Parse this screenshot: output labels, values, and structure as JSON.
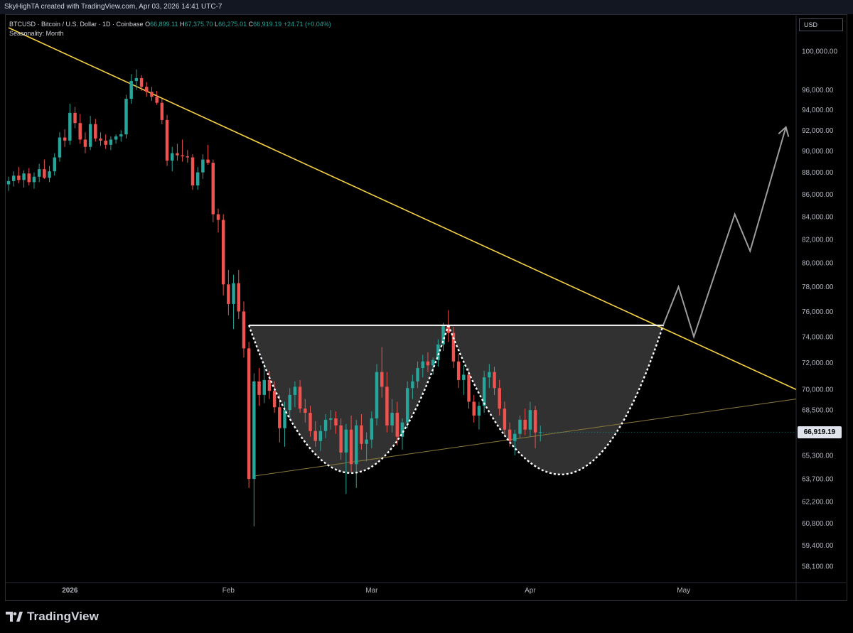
{
  "header": {
    "credit": "SkyHighTA created with TradingView.com, Apr 03, 2026 14:41 UTC-7"
  },
  "legend": {
    "symbol_line": "BTCUSD · Bitcoin / U.S. Dollar · 1D · Coinbase",
    "open_label": "O",
    "open": "66,899.11",
    "high_label": "H",
    "high": "67,375.70",
    "low_label": "L",
    "low": "66,275.01",
    "close_label": "C",
    "close": "66,919.19",
    "change": "+24.71 (+0.04%)",
    "indicator": "Seasonality: Month"
  },
  "currency": "USD",
  "last_price_label": "66,919.19",
  "branding": {
    "logo_text": "TradingView"
  },
  "colors": {
    "up": "#26a69a",
    "down": "#ef5350",
    "trendline": "#f5d142",
    "support": "#8a7a3a",
    "neckline": "#ffffff",
    "projection": "#9e9e9e",
    "fill": "#3a3a3a"
  },
  "chart_data": {
    "type": "candlestick",
    "y_axis": {
      "scale": "log",
      "ticks": [
        100000,
        96000,
        94000,
        92000,
        90000,
        88000,
        86000,
        84000,
        82000,
        80000,
        78000,
        76000,
        74000,
        72000,
        70000,
        68500,
        65300,
        63700,
        62200,
        60800,
        59400,
        58100
      ],
      "tick_labels": [
        "100,000.00",
        "96,000.00",
        "94,000.00",
        "92,000.00",
        "90,000.00",
        "88,000.00",
        "86,000.00",
        "84,000.00",
        "82,000.00",
        "80,000.00",
        "78,000.00",
        "76,000.00",
        "74,000.00",
        "72,000.00",
        "70,000.00",
        "68,500.00",
        "65,300.00",
        "63,700.00",
        "62,200.00",
        "60,800.00",
        "59,400.00",
        "58,100.00"
      ]
    },
    "x_axis": {
      "start": "2025-12-20",
      "end": "2026-05-23",
      "ticks": [
        {
          "date": "2026-01-01",
          "label": "2026"
        },
        {
          "date": "2026-02-01",
          "label": "Feb"
        },
        {
          "date": "2026-03-01",
          "label": "Mar"
        },
        {
          "date": "2026-04-01",
          "label": "Apr"
        },
        {
          "date": "2026-05-01",
          "label": "May"
        }
      ]
    },
    "candles": [
      {
        "d": "2025-12-20",
        "o": 86900,
        "h": 87600,
        "l": 86300,
        "c": 87200
      },
      {
        "d": "2025-12-21",
        "o": 87200,
        "h": 88100,
        "l": 86700,
        "c": 87700
      },
      {
        "d": "2025-12-22",
        "o": 87700,
        "h": 88500,
        "l": 87000,
        "c": 87300
      },
      {
        "d": "2025-12-23",
        "o": 87300,
        "h": 88200,
        "l": 86600,
        "c": 87900
      },
      {
        "d": "2025-12-24",
        "o": 87900,
        "h": 88400,
        "l": 86800,
        "c": 87100
      },
      {
        "d": "2025-12-25",
        "o": 87100,
        "h": 88000,
        "l": 86500,
        "c": 87600
      },
      {
        "d": "2025-12-26",
        "o": 87600,
        "h": 88800,
        "l": 87100,
        "c": 88300
      },
      {
        "d": "2025-12-27",
        "o": 88300,
        "h": 89200,
        "l": 87400,
        "c": 87500
      },
      {
        "d": "2025-12-28",
        "o": 87500,
        "h": 88600,
        "l": 87100,
        "c": 88100
      },
      {
        "d": "2025-12-29",
        "o": 88100,
        "h": 89800,
        "l": 87700,
        "c": 89400
      },
      {
        "d": "2025-12-30",
        "o": 89400,
        "h": 91800,
        "l": 89000,
        "c": 91300
      },
      {
        "d": "2025-12-31",
        "o": 91300,
        "h": 92100,
        "l": 90400,
        "c": 91000
      },
      {
        "d": "2026-01-01",
        "o": 91000,
        "h": 94600,
        "l": 90600,
        "c": 93700
      },
      {
        "d": "2026-01-02",
        "o": 93700,
        "h": 94300,
        "l": 92200,
        "c": 92700
      },
      {
        "d": "2026-01-03",
        "o": 92700,
        "h": 93600,
        "l": 90700,
        "c": 91100
      },
      {
        "d": "2026-01-04",
        "o": 91100,
        "h": 91800,
        "l": 89800,
        "c": 90400
      },
      {
        "d": "2026-01-05",
        "o": 90400,
        "h": 93400,
        "l": 90100,
        "c": 92600
      },
      {
        "d": "2026-01-06",
        "o": 92600,
        "h": 93100,
        "l": 90900,
        "c": 91200
      },
      {
        "d": "2026-01-07",
        "o": 91200,
        "h": 91800,
        "l": 90500,
        "c": 91000
      },
      {
        "d": "2026-01-08",
        "o": 91000,
        "h": 91600,
        "l": 90200,
        "c": 90600
      },
      {
        "d": "2026-01-09",
        "o": 90600,
        "h": 91400,
        "l": 90100,
        "c": 91100
      },
      {
        "d": "2026-01-10",
        "o": 91100,
        "h": 91600,
        "l": 90700,
        "c": 91400
      },
      {
        "d": "2026-01-11",
        "o": 91400,
        "h": 92000,
        "l": 90900,
        "c": 91600
      },
      {
        "d": "2026-01-12",
        "o": 91600,
        "h": 95500,
        "l": 91200,
        "c": 95100
      },
      {
        "d": "2026-01-13",
        "o": 95100,
        "h": 97600,
        "l": 94600,
        "c": 96900
      },
      {
        "d": "2026-01-14",
        "o": 96900,
        "h": 98100,
        "l": 96000,
        "c": 97200
      },
      {
        "d": "2026-01-15",
        "o": 97200,
        "h": 97500,
        "l": 95900,
        "c": 96300
      },
      {
        "d": "2026-01-16",
        "o": 96300,
        "h": 96800,
        "l": 95300,
        "c": 95800
      },
      {
        "d": "2026-01-17",
        "o": 95800,
        "h": 96300,
        "l": 94900,
        "c": 95300
      },
      {
        "d": "2026-01-18",
        "o": 95300,
        "h": 95900,
        "l": 94500,
        "c": 94700
      },
      {
        "d": "2026-01-19",
        "o": 94700,
        "h": 95100,
        "l": 92600,
        "c": 93000
      },
      {
        "d": "2026-01-20",
        "o": 93000,
        "h": 93500,
        "l": 88600,
        "c": 89100
      },
      {
        "d": "2026-01-21",
        "o": 89100,
        "h": 90400,
        "l": 88100,
        "c": 89800
      },
      {
        "d": "2026-01-22",
        "o": 89800,
        "h": 90700,
        "l": 89100,
        "c": 89600
      },
      {
        "d": "2026-01-23",
        "o": 89600,
        "h": 91100,
        "l": 89000,
        "c": 89500
      },
      {
        "d": "2026-01-24",
        "o": 89500,
        "h": 90100,
        "l": 88900,
        "c": 89400
      },
      {
        "d": "2026-01-25",
        "o": 89400,
        "h": 89700,
        "l": 86400,
        "c": 86800
      },
      {
        "d": "2026-01-26",
        "o": 86800,
        "h": 88500,
        "l": 86400,
        "c": 88000
      },
      {
        "d": "2026-01-27",
        "o": 88000,
        "h": 89700,
        "l": 87400,
        "c": 89200
      },
      {
        "d": "2026-01-28",
        "o": 89200,
        "h": 90600,
        "l": 88700,
        "c": 88900
      },
      {
        "d": "2026-01-29",
        "o": 88900,
        "h": 89200,
        "l": 83500,
        "c": 84200
      },
      {
        "d": "2026-01-30",
        "o": 84200,
        "h": 84700,
        "l": 82600,
        "c": 83700
      },
      {
        "d": "2026-01-31",
        "o": 83700,
        "h": 84200,
        "l": 77300,
        "c": 78200
      },
      {
        "d": "2026-02-01",
        "o": 78200,
        "h": 79400,
        "l": 75700,
        "c": 76600
      },
      {
        "d": "2026-02-02",
        "o": 76600,
        "h": 79000,
        "l": 74600,
        "c": 78300
      },
      {
        "d": "2026-02-03",
        "o": 78300,
        "h": 79400,
        "l": 75400,
        "c": 76000
      },
      {
        "d": "2026-02-04",
        "o": 76000,
        "h": 76800,
        "l": 72400,
        "c": 73100
      },
      {
        "d": "2026-02-05",
        "o": 73100,
        "h": 73600,
        "l": 63100,
        "c": 63700
      },
      {
        "d": "2026-02-06",
        "o": 63700,
        "h": 71200,
        "l": 60600,
        "c": 70600
      },
      {
        "d": "2026-02-07",
        "o": 70600,
        "h": 71600,
        "l": 68800,
        "c": 69600
      },
      {
        "d": "2026-02-08",
        "o": 69600,
        "h": 71900,
        "l": 69000,
        "c": 70700
      },
      {
        "d": "2026-02-09",
        "o": 70700,
        "h": 71400,
        "l": 69300,
        "c": 69900
      },
      {
        "d": "2026-02-10",
        "o": 69900,
        "h": 70600,
        "l": 68300,
        "c": 68700
      },
      {
        "d": "2026-02-11",
        "o": 68700,
        "h": 69600,
        "l": 66200,
        "c": 67200
      },
      {
        "d": "2026-02-12",
        "o": 67200,
        "h": 69100,
        "l": 65900,
        "c": 68500
      },
      {
        "d": "2026-02-13",
        "o": 68500,
        "h": 70100,
        "l": 67900,
        "c": 69600
      },
      {
        "d": "2026-02-14",
        "o": 69600,
        "h": 70600,
        "l": 68700,
        "c": 70200
      },
      {
        "d": "2026-02-15",
        "o": 70200,
        "h": 70700,
        "l": 68300,
        "c": 68600
      },
      {
        "d": "2026-02-16",
        "o": 68600,
        "h": 69300,
        "l": 67600,
        "c": 68300
      },
      {
        "d": "2026-02-17",
        "o": 68300,
        "h": 68800,
        "l": 66600,
        "c": 67000
      },
      {
        "d": "2026-02-18",
        "o": 67000,
        "h": 67700,
        "l": 65900,
        "c": 66300
      },
      {
        "d": "2026-02-19",
        "o": 66300,
        "h": 67400,
        "l": 65600,
        "c": 67000
      },
      {
        "d": "2026-02-20",
        "o": 67000,
        "h": 68200,
        "l": 66500,
        "c": 67800
      },
      {
        "d": "2026-02-21",
        "o": 67800,
        "h": 68500,
        "l": 67100,
        "c": 67900
      },
      {
        "d": "2026-02-22",
        "o": 67900,
        "h": 68400,
        "l": 66800,
        "c": 67400
      },
      {
        "d": "2026-02-23",
        "o": 67400,
        "h": 67900,
        "l": 65000,
        "c": 65500
      },
      {
        "d": "2026-02-24",
        "o": 65500,
        "h": 67500,
        "l": 62700,
        "c": 67100
      },
      {
        "d": "2026-02-25",
        "o": 67100,
        "h": 68100,
        "l": 64200,
        "c": 64700
      },
      {
        "d": "2026-02-26",
        "o": 64700,
        "h": 67800,
        "l": 63100,
        "c": 67400
      },
      {
        "d": "2026-02-27",
        "o": 67400,
        "h": 68200,
        "l": 65700,
        "c": 66100
      },
      {
        "d": "2026-02-28",
        "o": 66100,
        "h": 66900,
        "l": 64900,
        "c": 66400
      },
      {
        "d": "2026-03-01",
        "o": 66400,
        "h": 68400,
        "l": 65800,
        "c": 67900
      },
      {
        "d": "2026-03-02",
        "o": 67900,
        "h": 71900,
        "l": 67400,
        "c": 71300
      },
      {
        "d": "2026-03-03",
        "o": 71300,
        "h": 73200,
        "l": 69400,
        "c": 70200
      },
      {
        "d": "2026-03-04",
        "o": 70200,
        "h": 71300,
        "l": 66900,
        "c": 67400
      },
      {
        "d": "2026-03-05",
        "o": 67400,
        "h": 69300,
        "l": 66900,
        "c": 68300
      },
      {
        "d": "2026-03-06",
        "o": 68300,
        "h": 69100,
        "l": 66000,
        "c": 66600
      },
      {
        "d": "2026-03-07",
        "o": 66600,
        "h": 67900,
        "l": 65700,
        "c": 67600
      },
      {
        "d": "2026-03-08",
        "o": 67600,
        "h": 70600,
        "l": 67200,
        "c": 70100
      },
      {
        "d": "2026-03-09",
        "o": 70100,
        "h": 71100,
        "l": 69300,
        "c": 70600
      },
      {
        "d": "2026-03-10",
        "o": 70600,
        "h": 72100,
        "l": 70100,
        "c": 71600
      },
      {
        "d": "2026-03-11",
        "o": 71600,
        "h": 72600,
        "l": 70900,
        "c": 72100
      },
      {
        "d": "2026-03-12",
        "o": 72100,
        "h": 72800,
        "l": 71300,
        "c": 71800
      },
      {
        "d": "2026-03-13",
        "o": 71800,
        "h": 72400,
        "l": 71100,
        "c": 72200
      },
      {
        "d": "2026-03-14",
        "o": 72200,
        "h": 73800,
        "l": 71700,
        "c": 73400
      },
      {
        "d": "2026-03-15",
        "o": 73400,
        "h": 75100,
        "l": 72900,
        "c": 74900
      },
      {
        "d": "2026-03-16",
        "o": 74900,
        "h": 76100,
        "l": 73600,
        "c": 74300
      },
      {
        "d": "2026-03-17",
        "o": 74300,
        "h": 74800,
        "l": 71600,
        "c": 72100
      },
      {
        "d": "2026-03-18",
        "o": 72100,
        "h": 72700,
        "l": 70100,
        "c": 70700
      },
      {
        "d": "2026-03-19",
        "o": 70700,
        "h": 71800,
        "l": 69600,
        "c": 71100
      },
      {
        "d": "2026-03-20",
        "o": 71100,
        "h": 71600,
        "l": 68600,
        "c": 69100
      },
      {
        "d": "2026-03-21",
        "o": 69100,
        "h": 69600,
        "l": 67600,
        "c": 68100
      },
      {
        "d": "2026-03-22",
        "o": 68100,
        "h": 69100,
        "l": 67100,
        "c": 68800
      },
      {
        "d": "2026-03-23",
        "o": 68800,
        "h": 71400,
        "l": 68300,
        "c": 70900
      },
      {
        "d": "2026-03-24",
        "o": 70900,
        "h": 71900,
        "l": 70100,
        "c": 71300
      },
      {
        "d": "2026-03-25",
        "o": 71300,
        "h": 71700,
        "l": 69600,
        "c": 70100
      },
      {
        "d": "2026-03-26",
        "o": 70100,
        "h": 70700,
        "l": 68100,
        "c": 68600
      },
      {
        "d": "2026-03-27",
        "o": 68600,
        "h": 69100,
        "l": 66600,
        "c": 67100
      },
      {
        "d": "2026-03-28",
        "o": 67100,
        "h": 67600,
        "l": 65900,
        "c": 66300
      },
      {
        "d": "2026-03-29",
        "o": 66300,
        "h": 67100,
        "l": 65300,
        "c": 66800
      },
      {
        "d": "2026-03-30",
        "o": 66800,
        "h": 68100,
        "l": 66500,
        "c": 67800
      },
      {
        "d": "2026-03-31",
        "o": 67800,
        "h": 68600,
        "l": 66700,
        "c": 67100
      },
      {
        "d": "2026-04-01",
        "o": 67100,
        "h": 69100,
        "l": 66600,
        "c": 68500
      },
      {
        "d": "2026-04-02",
        "o": 68500,
        "h": 68800,
        "l": 65800,
        "c": 66900
      },
      {
        "d": "2026-04-03",
        "o": 66899,
        "h": 67376,
        "l": 66275,
        "c": 66919
      }
    ],
    "drawings": {
      "descending_trendline": [
        {
          "d": "2025-12-20",
          "p": 102500
        },
        {
          "d": "2026-05-23",
          "p": 70000
        }
      ],
      "ascending_support": [
        {
          "d": "2026-02-06",
          "p": 63900
        },
        {
          "d": "2026-05-23",
          "p": 69300
        }
      ],
      "neckline": [
        {
          "d": "2026-02-05",
          "p": 74900
        },
        {
          "d": "2026-04-27",
          "p": 74900
        }
      ],
      "cup_left": [
        {
          "d": "2026-02-05",
          "p": 74900
        },
        {
          "d": "2026-02-25",
          "p": 64100
        },
        {
          "d": "2026-03-16",
          "p": 74900
        }
      ],
      "cup_right": [
        {
          "d": "2026-03-16",
          "p": 74900
        },
        {
          "d": "2026-04-07",
          "p": 64000
        },
        {
          "d": "2026-04-27",
          "p": 74900
        }
      ],
      "projection_path": [
        {
          "d": "2026-04-27",
          "p": 74900
        },
        {
          "d": "2026-04-30",
          "p": 78000
        },
        {
          "d": "2026-05-03",
          "p": 74000
        },
        {
          "d": "2026-05-11",
          "p": 84200
        },
        {
          "d": "2026-05-14",
          "p": 81000
        },
        {
          "d": "2026-05-21",
          "p": 92300
        }
      ],
      "projection_arrowhead": {
        "d": "2026-05-21",
        "p": 92300
      }
    }
  }
}
